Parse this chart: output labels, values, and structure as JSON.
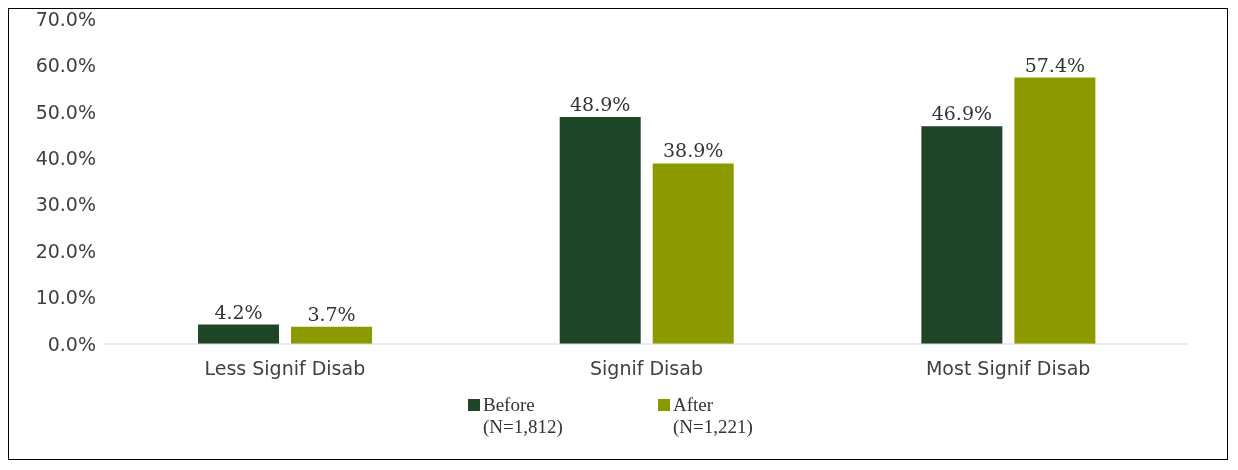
{
  "chart_data": {
    "type": "bar",
    "categories": [
      "Less Signif Disab",
      "Signif Disab",
      "Most Signif Disab"
    ],
    "series": [
      {
        "name": "Before (N=1,812)",
        "color": "#1f4529",
        "values": [
          4.2,
          48.9,
          46.9
        ],
        "value_labels": [
          "4.2%",
          "48.9%",
          "46.9%"
        ]
      },
      {
        "name": "After (N=1,221)",
        "color": "#8c9a00",
        "values": [
          3.7,
          38.9,
          57.4
        ],
        "value_labels": [
          "3.7%",
          "38.9%",
          "57.4%"
        ]
      }
    ],
    "ylim": [
      0,
      70
    ],
    "yticks": [
      {
        "value": 0,
        "label": "0.0%"
      },
      {
        "value": 10,
        "label": "10.0%"
      },
      {
        "value": 20,
        "label": "20.0%"
      },
      {
        "value": 30,
        "label": "30.0%"
      },
      {
        "value": 40,
        "label": "40.0%"
      },
      {
        "value": 50,
        "label": "50.0%"
      },
      {
        "value": 60,
        "label": "60.0%"
      },
      {
        "value": 70,
        "label": "70.0%"
      }
    ],
    "grid": false,
    "legend": "bottom"
  }
}
